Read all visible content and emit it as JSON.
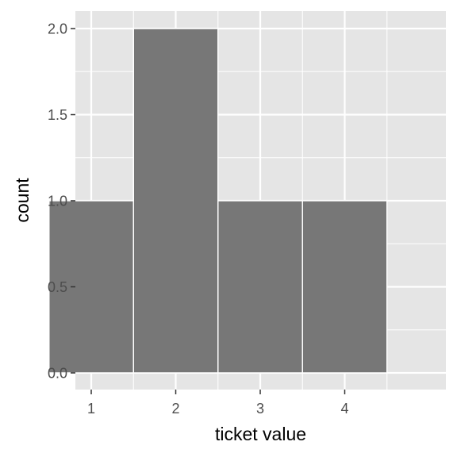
{
  "chart_data": {
    "type": "bar",
    "title": "",
    "xlabel": "ticket value",
    "ylabel": "count",
    "categories": [
      "1",
      "2",
      "3",
      "4"
    ],
    "x": [
      1,
      2,
      3,
      4
    ],
    "values": [
      1,
      2,
      1,
      1
    ],
    "xlim": [
      0.5,
      4.5
    ],
    "ylim": [
      0,
      2
    ],
    "y_ticks": [
      0,
      0.5,
      1,
      1.5,
      2
    ],
    "y_tick_labels": [
      "0.0",
      "0.5",
      "1.0",
      "1.5",
      "2.0"
    ],
    "grid": true,
    "legend": "none",
    "colors": {
      "panel_background": "#e5e5e5",
      "grid": "#ffffff",
      "bar_fill": "#777777",
      "bar_outline": "#ffffff",
      "tick_text": "#4d4d4d",
      "axis_title": "#000000"
    }
  }
}
